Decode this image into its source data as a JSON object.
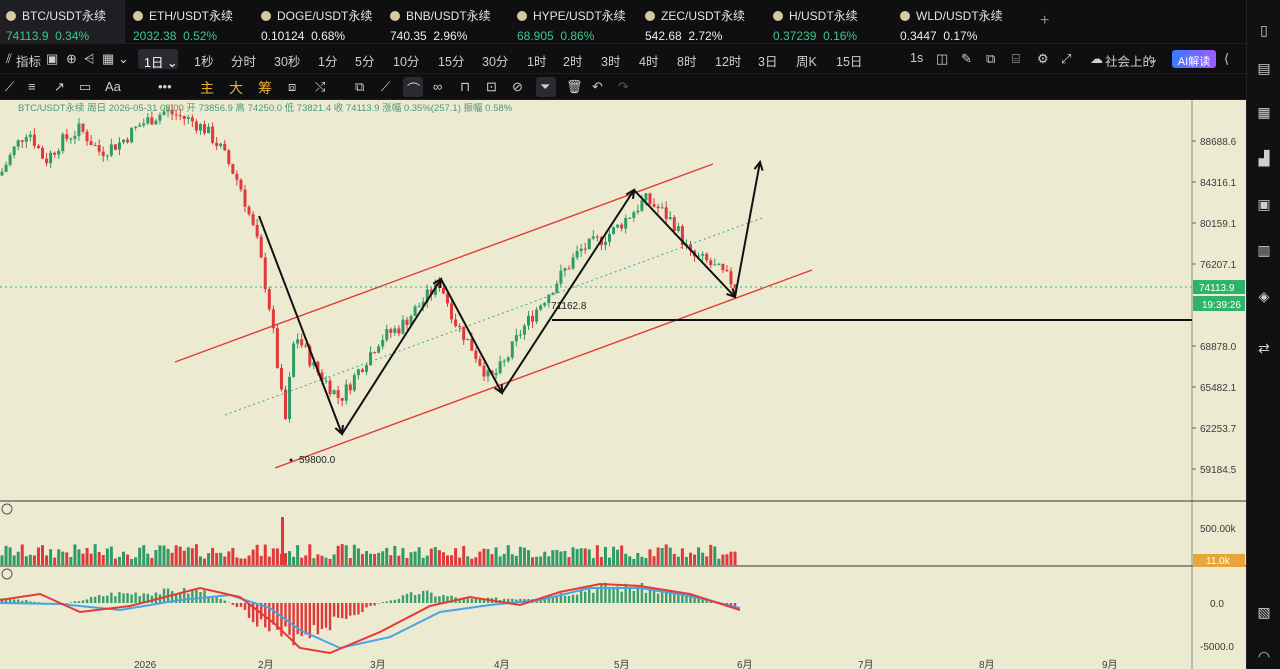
{
  "tickers": [
    {
      "symbol": "BTC/USDT永续",
      "price": "74113.9",
      "change": "0.34%",
      "color": "up",
      "active": true
    },
    {
      "symbol": "ETH/USDT永续",
      "price": "2032.38",
      "change": "0.52%",
      "color": "up"
    },
    {
      "symbol": "DOGE/USDT永续",
      "price": "0.10124",
      "change": "0.68%",
      "color": "wh"
    },
    {
      "symbol": "BNB/USDT永续",
      "price": "740.35",
      "change": "2.96%",
      "color": "wh"
    },
    {
      "symbol": "HYPE/USDT永续",
      "price": "68.905",
      "change": "0.86%",
      "color": "up"
    },
    {
      "symbol": "ZEC/USDT永续",
      "price": "542.68",
      "change": "2.72%",
      "color": "wh"
    },
    {
      "symbol": "H/USDT永续",
      "price": "0.37239",
      "change": "0.16%",
      "color": "up"
    },
    {
      "symbol": "WLD/USDT永续",
      "price": "0.3447",
      "change": "0.17%",
      "color": "wh"
    }
  ],
  "toolbar": {
    "indicators": "指标",
    "interval_selected": "1日",
    "intervals": [
      "1秒",
      "分时",
      "30秒",
      "1分",
      "5分",
      "10分",
      "15分",
      "30分",
      "1时",
      "2时",
      "3时",
      "4时",
      "8时",
      "12时",
      "3日",
      "周K",
      "15日"
    ],
    "speed": "1s",
    "community": "社会上的",
    "ai": "AI解读"
  },
  "drawbar": {
    "main": "主",
    "big": "大",
    "chips": "筹"
  },
  "chart_info": {
    "title": "BTC/USDT永续 周日 2026-05-31 08:00",
    "open": "开 73856.9",
    "high": "高 74250.0",
    "low": "低 73821.4",
    "close": "收 74113.9",
    "change": "涨幅 0.35%(257.1)",
    "amplitude": "振幅 0.58%"
  },
  "chart_data": {
    "type": "candlestick",
    "y_ticks": [
      "88688.6",
      "84316.1",
      "80159.1",
      "76207.1",
      "68878.0",
      "65482.1",
      "62253.7",
      "59184.5"
    ],
    "x_ticks": [
      "2026",
      "2月",
      "3月",
      "4月",
      "5月",
      "6月",
      "7月",
      "8月",
      "9月"
    ],
    "last_price": "74113.9",
    "countdown": "19:39:26",
    "annotations": [
      "71162.8",
      "59800.0"
    ],
    "volume_ticks": [
      "500.00k"
    ],
    "volume_last": "11.0k",
    "macd_ticks": [
      "0.0",
      "-5000.0"
    ],
    "colors": {
      "up": "#2f9a66",
      "down": "#e0393b",
      "channel": "#e53935",
      "bg": "#ecebd2"
    }
  }
}
